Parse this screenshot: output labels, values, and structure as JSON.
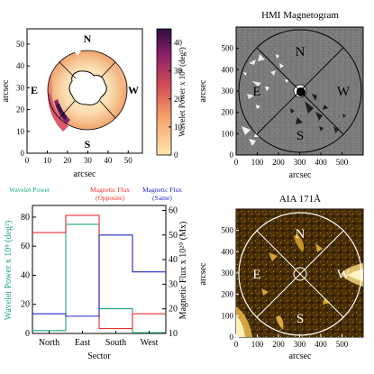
{
  "panels": {
    "wavelet_map": {
      "xlabel": "arcsec",
      "ylabel": "arcsec",
      "x_ticks": [
        "0",
        "10",
        "20",
        "30",
        "40",
        "50"
      ],
      "y_ticks": [
        "0",
        "10",
        "20",
        "30",
        "40",
        "50"
      ],
      "xlim": [
        0,
        57
      ],
      "ylim": [
        0,
        57
      ],
      "sector_labels": {
        "north": "N",
        "east": "E",
        "west": "W",
        "south": "S"
      },
      "colorbar": {
        "label": "Wavelet Power x 10⁸ (deg²)",
        "ticks": [
          "0",
          "10",
          "20",
          "30",
          "40"
        ],
        "range": [
          0,
          45
        ],
        "colors": [
          "#ffe6b0",
          "#f6a26b",
          "#d24d57",
          "#8a1f6a",
          "#2b0f3a"
        ]
      }
    },
    "magnetogram": {
      "title": "HMI Magnetogram",
      "xlabel": "arcsec",
      "ylabel": "arcsec",
      "x_ticks": [
        "0",
        "100",
        "200",
        "300",
        "400",
        "500"
      ],
      "y_ticks": [
        "0",
        "100",
        "200",
        "300",
        "400",
        "500"
      ],
      "xlim": [
        0,
        600
      ],
      "ylim": [
        0,
        600
      ],
      "sector_labels": {
        "north": "N",
        "east": "E",
        "west": "W",
        "south": "S"
      }
    },
    "aia": {
      "title": "AIA 171Å",
      "xlabel": "arcsec",
      "ylabel": "arcsec",
      "x_ticks": [
        "0",
        "100",
        "200",
        "300",
        "400",
        "500"
      ],
      "y_ticks": [
        "0",
        "100",
        "200",
        "300",
        "400",
        "500"
      ],
      "xlim": [
        0,
        600
      ],
      "ylim": [
        0,
        600
      ],
      "sector_labels": {
        "north": "N",
        "east": "E",
        "west": "W",
        "south": "S"
      }
    }
  },
  "chart_data": {
    "type": "line",
    "step": true,
    "categories": [
      "North",
      "East",
      "South",
      "West"
    ],
    "xlabel": "Sector",
    "left_axis": {
      "label": "Wavelet Power x 10⁸ (deg²)",
      "ticks": [
        "0",
        "20",
        "40",
        "60",
        "80"
      ],
      "ylim": [
        0,
        88
      ],
      "color": "#1aa773"
    },
    "right_axis": {
      "label": "Magnetic Flux x 10²⁰ (Mx)",
      "ticks": [
        "10",
        "20",
        "30",
        "40",
        "50",
        "60"
      ],
      "ylim": [
        10,
        62
      ],
      "color": "#000000"
    },
    "series": [
      {
        "name": "Wavelet Power",
        "axis": "left",
        "color": "#1aa773",
        "values": [
          2,
          75,
          17,
          0.5
        ]
      },
      {
        "name": "Magnetic Flux (Opposite)",
        "axis": "right",
        "color": "#e8302b",
        "values": [
          51,
          58,
          12,
          18
        ]
      },
      {
        "name": "Magnetic Flux (Same)",
        "axis": "right",
        "color": "#2228c9",
        "values": [
          18,
          17,
          50,
          35
        ]
      }
    ],
    "legend": [
      {
        "line1": "Wavelet Power",
        "line2": "",
        "color": "#1aa773"
      },
      {
        "line1": "Magnetic Flux",
        "line2": "(Opposite)",
        "color": "#e8302b"
      },
      {
        "line1": "Magnetic Flux",
        "line2": "(Same)",
        "color": "#2228c9"
      }
    ]
  }
}
